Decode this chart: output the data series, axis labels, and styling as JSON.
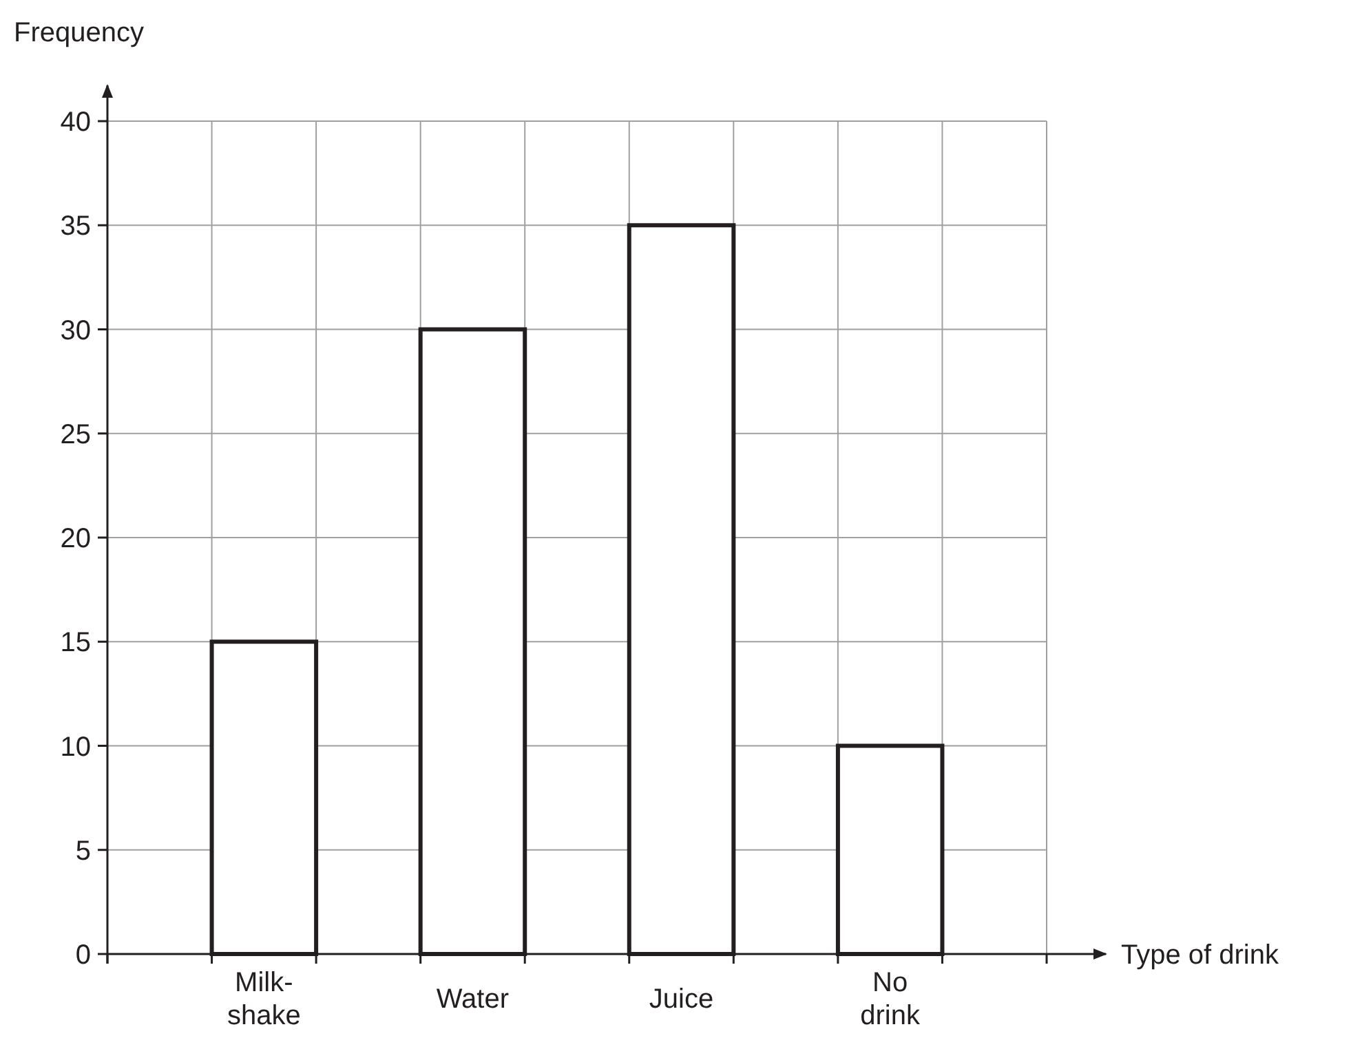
{
  "chart_data": {
    "type": "bar",
    "xlabel": "Type of drink",
    "ylabel": "Frequency",
    "categories": [
      "Milk-\nshake",
      "Water",
      "Juice",
      "No\ndrink"
    ],
    "values": [
      15,
      30,
      35,
      10
    ],
    "color": "#ffffff",
    "ylim": [
      0,
      40
    ],
    "yticks": [
      0,
      5,
      10,
      15,
      20,
      25,
      30,
      35,
      40
    ],
    "grid": true
  }
}
